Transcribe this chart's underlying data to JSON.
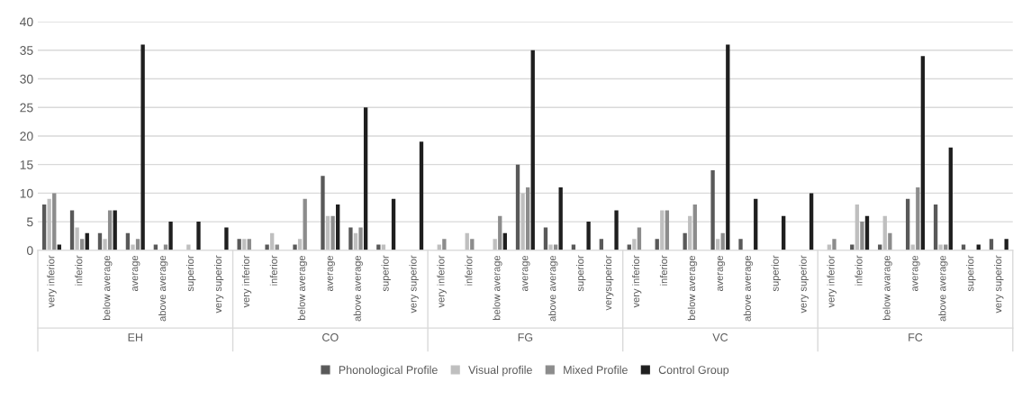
{
  "chart_data": {
    "type": "bar",
    "categories": [
      "very inferior",
      "inferior",
      "below average",
      "average",
      "above average",
      "superior",
      "very superior",
      "very inferior",
      "inferior",
      "below average",
      "average",
      "above average",
      "superior",
      "very superior",
      "very inferior",
      "inferior",
      "below average",
      "average",
      "above average",
      "superior",
      "verysuperior",
      "very inferior",
      "inferior",
      "below average",
      "average",
      "above average",
      "superior",
      "very superior",
      "very inferior",
      "inferior",
      "below avarage",
      "average",
      "above average",
      "superior",
      "very superior"
    ],
    "annotations": [
      "EH",
      "CO",
      "FG",
      "VC",
      "FC"
    ],
    "series": [
      {
        "name": "Phonological Profile",
        "color": "#595959",
        "values": [
          8,
          7,
          3,
          3,
          1,
          0,
          0,
          2,
          1,
          1,
          13,
          4,
          1,
          0,
          0,
          0,
          0,
          15,
          4,
          1,
          2,
          1,
          2,
          3,
          14,
          2,
          0,
          0,
          0,
          1,
          1,
          9,
          8,
          1,
          2
        ]
      },
      {
        "name": "Visual profile",
        "color": "#bfbfbf",
        "values": [
          9,
          4,
          2,
          1,
          0,
          1,
          0,
          2,
          3,
          2,
          6,
          3,
          1,
          0,
          1,
          3,
          2,
          10,
          1,
          0,
          0,
          2,
          7,
          6,
          2,
          0,
          0,
          0,
          1,
          8,
          6,
          1,
          1,
          0,
          0
        ]
      },
      {
        "name": "Mixed Profile",
        "color": "#8c8c8c",
        "values": [
          10,
          2,
          7,
          2,
          1,
          0,
          0,
          2,
          1,
          9,
          6,
          4,
          0,
          0,
          2,
          2,
          6,
          11,
          1,
          0,
          0,
          4,
          7,
          8,
          3,
          0,
          0,
          0,
          2,
          5,
          3,
          11,
          1,
          0,
          0
        ]
      },
      {
        "name": "Control Group",
        "color": "#1f1f1f",
        "values": [
          1,
          3,
          7,
          36,
          5,
          5,
          4,
          0,
          0,
          0,
          8,
          25,
          9,
          19,
          0,
          0,
          3,
          35,
          11,
          5,
          7,
          0,
          0,
          0,
          36,
          9,
          6,
          10,
          0,
          6,
          0,
          34,
          18,
          1,
          2
        ]
      }
    ],
    "ylim": [
      0,
      40
    ],
    "yticks": [
      0,
      5,
      10,
      15,
      20,
      25,
      30,
      35,
      40
    ],
    "grid": "y",
    "legend": "bottom"
  }
}
